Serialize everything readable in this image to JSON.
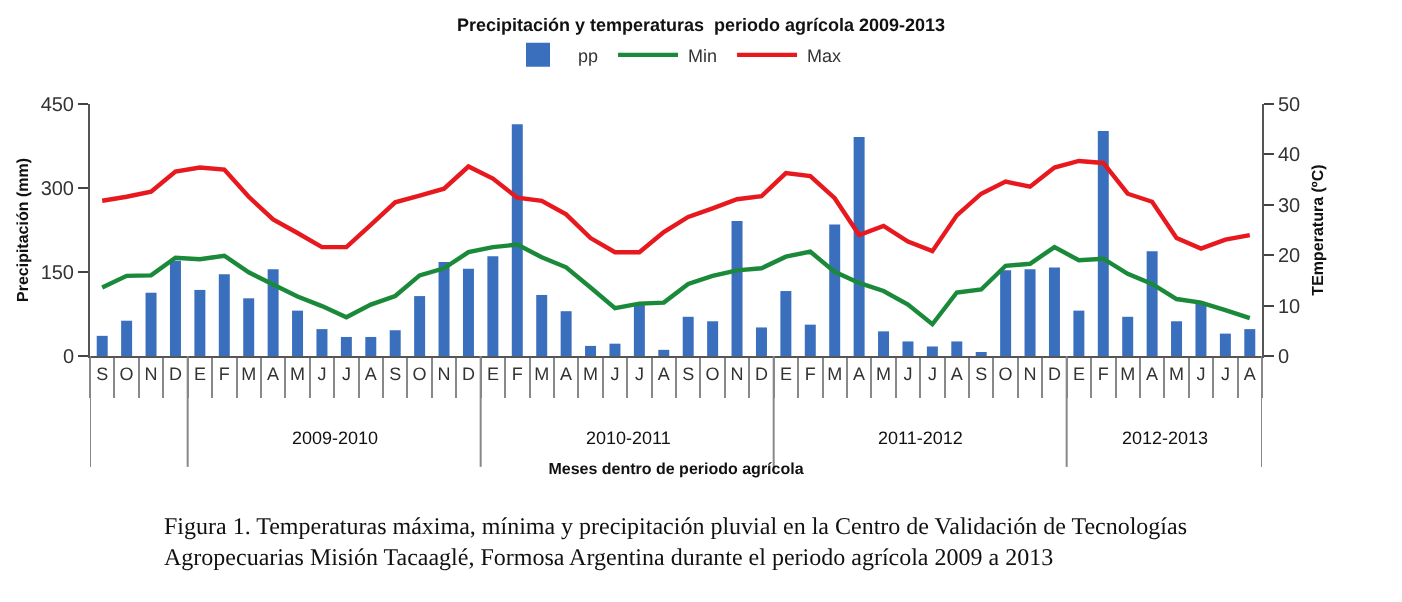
{
  "chart_data": {
    "type": "bar",
    "title": "Precipitación y temperaturas  periodo agrícola 2009-2013",
    "xlabel": "Meses dentro de periodo agrícola",
    "ylabel": "Precipitación (mm)",
    "y2label": "TEmperatura (ºC)",
    "categories": [
      "S",
      "O",
      "N",
      "D",
      "E",
      "F",
      "M",
      "A",
      "M",
      "J",
      "J",
      "A",
      "S",
      "O",
      "N",
      "D",
      "E",
      "F",
      "M",
      "A",
      "M",
      "J",
      "J",
      "A",
      "S",
      "O",
      "N",
      "D",
      "E",
      "F",
      "M",
      "A",
      "M",
      "J",
      "J",
      "A",
      "S",
      "O",
      "N",
      "D",
      "E",
      "F",
      "M",
      "A",
      "M",
      "J",
      "J",
      "A"
    ],
    "series": [
      {
        "name": "pp",
        "color": "#3a6fbd",
        "values": [
          36,
          63,
          113,
          170,
          118,
          146,
          103,
          155,
          81,
          48,
          34,
          34,
          46,
          107,
          168,
          156,
          178,
          414,
          109,
          80,
          18,
          22,
          91,
          11,
          70,
          62,
          241,
          51,
          116,
          56,
          235,
          391,
          44,
          26,
          17,
          26,
          5,
          153,
          155,
          158,
          81,
          402,
          70,
          187,
          62,
          95,
          40,
          48
        ]
      },
      {
        "name": "Min",
        "type": "line",
        "axis": "y2",
        "color": "#1a8a3a",
        "values": [
          13.6,
          15.9,
          16,
          19.5,
          19.2,
          19.9,
          16.6,
          14.2,
          11.8,
          9.9,
          7.7,
          10.2,
          11.9,
          16,
          17.4,
          20.6,
          21.6,
          22.1,
          19.6,
          17.6,
          13.6,
          9.5,
          10.4,
          10.6,
          14.3,
          15.9,
          17,
          17.4,
          19.7,
          20.7,
          16.7,
          14.5,
          12.9,
          10.2,
          6.3,
          12.6,
          13.2,
          17.9,
          18.3,
          21.6,
          19,
          19.3,
          16.3,
          14.3,
          11.3,
          10.6,
          9.1,
          7.5
        ]
      },
      {
        "name": "Max",
        "type": "line",
        "axis": "y2",
        "color": "#e8191e",
        "values": [
          30.8,
          31.6,
          32.6,
          36.6,
          37.4,
          37,
          31.6,
          27.1,
          24.4,
          21.6,
          21.6,
          26,
          30.5,
          31.8,
          33.2,
          37.6,
          35.2,
          31.4,
          30.8,
          28.1,
          23.4,
          20.6,
          20.6,
          24.6,
          27.6,
          29.3,
          31.1,
          31.7,
          36.3,
          35.7,
          31.3,
          24,
          25.8,
          22.7,
          20.8,
          27.9,
          32.2,
          34.6,
          33.6,
          37.4,
          38.7,
          38.3,
          32.2,
          30.6,
          23.4,
          21.3,
          23.1,
          24
        ]
      }
    ],
    "ylim": [
      0,
      450
    ],
    "yticks": [
      0,
      150,
      300,
      450
    ],
    "y2lim": [
      0,
      50
    ],
    "y2ticks": [
      0,
      10,
      20,
      30,
      40,
      50
    ],
    "legend": "top",
    "grid": false,
    "marker": "none",
    "line_style": "solid",
    "annotations": [
      "2009-2010",
      "2010-2011",
      "2011-2012",
      "2012-2013",
      "Figura 1. Temperaturas máxima, mínima y precipitación pluvial en la Centro de Validación de Tecnologías\nAgropecuarias Misión Tacaaglé, Formosa Argentina durante el periodo agrícola 2009 a 2013"
    ]
  }
}
